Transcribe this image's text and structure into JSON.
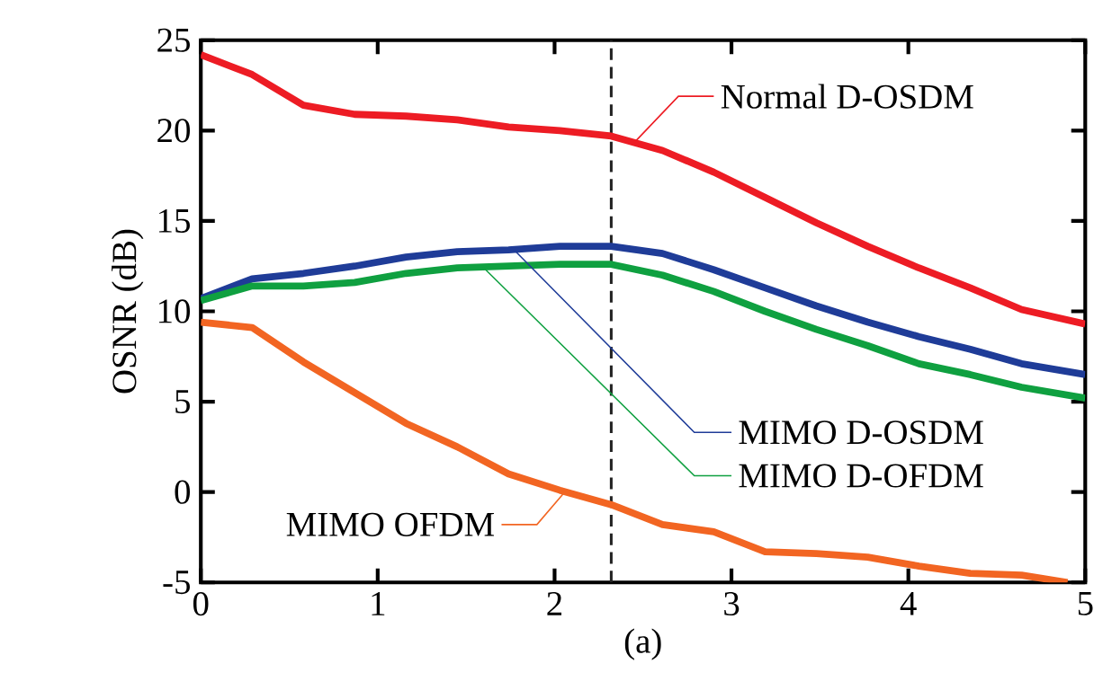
{
  "chart_data": {
    "type": "line",
    "xlabel": "(a)",
    "ylabel": "OSNR (dB)",
    "xlim": [
      0,
      5
    ],
    "ylim": [
      -5,
      25
    ],
    "xticks": [
      0,
      1,
      2,
      3,
      4,
      5
    ],
    "yticks": [
      -5,
      0,
      5,
      10,
      15,
      20,
      25
    ],
    "grid": false,
    "legend": "top right",
    "marker": "none",
    "line_style": "solid",
    "x": [
      0,
      0.29,
      0.58,
      0.87,
      1.16,
      1.45,
      1.74,
      2.03,
      2.32,
      2.61,
      2.9,
      3.19,
      3.48,
      3.77,
      4.06,
      4.35,
      4.64,
      5
    ],
    "series": [
      {
        "name": "Normal D-OSDM",
        "color": "#ed1c24",
        "values": [
          24.2,
          23.1,
          21.4,
          20.9,
          20.8,
          20.6,
          20.2,
          20.0,
          19.7,
          18.9,
          17.7,
          16.3,
          14.9,
          13.6,
          12.4,
          11.3,
          10.1,
          9.3
        ]
      },
      {
        "name": "MIMO D-OSDM",
        "color": "#1f3c98",
        "values": [
          10.7,
          11.8,
          12.1,
          12.5,
          13.0,
          13.3,
          13.4,
          13.6,
          13.6,
          13.2,
          12.3,
          11.3,
          10.3,
          9.4,
          8.6,
          7.9,
          7.1,
          6.5
        ]
      },
      {
        "name": "MIMO D-OFDM",
        "color": "#0fa040",
        "values": [
          10.6,
          11.4,
          11.4,
          11.6,
          12.1,
          12.4,
          12.5,
          12.6,
          12.6,
          12.0,
          11.1,
          10.0,
          9.0,
          8.1,
          7.1,
          6.5,
          5.8,
          5.2
        ]
      },
      {
        "name": "MIMO OFDM",
        "color": "#f26522",
        "x": [
          0,
          0.29,
          0.58,
          0.87,
          1.16,
          1.45,
          1.74,
          2.03,
          2.32,
          2.61,
          2.9,
          3.19,
          3.48,
          3.77,
          4.06,
          4.35,
          4.64,
          4.9
        ],
        "values": [
          9.4,
          9.1,
          7.2,
          5.5,
          3.8,
          2.5,
          1.0,
          0.1,
          -0.7,
          -1.8,
          -2.2,
          -3.3,
          -3.4,
          -3.6,
          -4.1,
          -4.5,
          -4.6,
          -5.0
        ]
      }
    ],
    "ref_lines": [
      {
        "axis": "x",
        "value": 2.32,
        "color": "#222222",
        "line_style": "dashed"
      }
    ]
  }
}
